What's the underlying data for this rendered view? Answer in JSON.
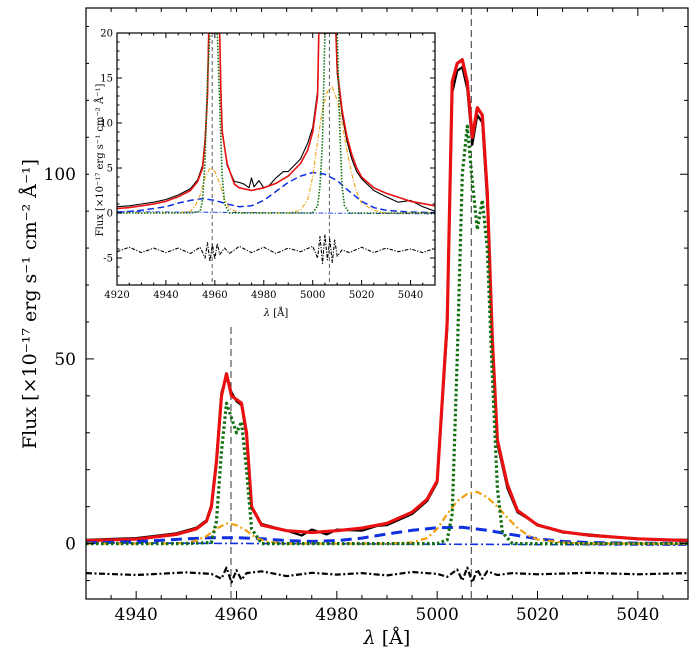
{
  "chart_data": [
    {
      "type": "line",
      "panel": "main",
      "xlabel_symbol": "λ",
      "xlabel_unit": "[Å]",
      "ylabel_text": "Flux [",
      "ylabel_units": "×10⁻¹⁷ erg s⁻¹ cm⁻² Å⁻¹]",
      "xlim": [
        4930,
        5050
      ],
      "ylim": [
        -15,
        145
      ],
      "xticks": [
        4940,
        4960,
        4980,
        5000,
        5020,
        5040
      ],
      "yticks": [
        0,
        50,
        100
      ],
      "vlines": [
        4958.9,
        5006.8
      ],
      "series": [
        {
          "style": "total-model",
          "color": "#e81010",
          "x": [
            4930,
            4940,
            4948,
            4952,
            4954,
            4955,
            4956,
            4957,
            4958,
            4959,
            4960,
            4961,
            4962,
            4963,
            4965,
            4970,
            4975,
            4980,
            4985,
            4990,
            4995,
            4998,
            5000,
            5002,
            5003,
            5004,
            5005,
            5006,
            5007,
            5008,
            5009,
            5010,
            5011,
            5012,
            5014,
            5016,
            5020,
            5025,
            5030,
            5040,
            5050
          ],
          "y": [
            0.8,
            1.2,
            2.5,
            4,
            6,
            10,
            22,
            40,
            46,
            40,
            39,
            38,
            30,
            10,
            5,
            3.5,
            3,
            3.5,
            4.2,
            5.5,
            8.5,
            12,
            17,
            60,
            125,
            130,
            131,
            125,
            110,
            118,
            116,
            95,
            55,
            28,
            16,
            9,
            5,
            3.2,
            2.3,
            1.3,
            0.8
          ]
        },
        {
          "style": "data",
          "color": "#000000",
          "x": [
            4930,
            4940,
            4948,
            4952,
            4954,
            4955,
            4956,
            4957,
            4958,
            4959,
            4960,
            4961,
            4962,
            4963,
            4965,
            4970,
            4973,
            4975,
            4978,
            4980,
            4985,
            4988,
            4990,
            4995,
            4998,
            5000,
            5002,
            5003,
            5004,
            5005,
            5006,
            5007,
            5008,
            5009,
            5010,
            5011,
            5012,
            5014,
            5016,
            5020,
            5025,
            5030,
            5040,
            5050
          ],
          "y": [
            1,
            1.5,
            2.8,
            4.3,
            6.3,
            10.5,
            23,
            41,
            45,
            41,
            38.5,
            37.5,
            29,
            9.5,
            5.3,
            3.5,
            2.2,
            3.8,
            2.5,
            3.8,
            3.5,
            4.8,
            5,
            8,
            11.5,
            16.5,
            58,
            122,
            128,
            129,
            123,
            108,
            116,
            114,
            92,
            53,
            27,
            15,
            8.5,
            5.2,
            3,
            2.5,
            1.2,
            1
          ]
        },
        {
          "style": "dotted",
          "color": "#107010",
          "x": [
            4930,
            4950,
            4955,
            4956,
            4957,
            4958,
            4959,
            4960,
            4961,
            4962,
            4963,
            4965,
            4975,
            4990,
            5000,
            5002,
            5003,
            5004,
            5005,
            5006,
            5007,
            5008,
            5009,
            5010,
            5011,
            5012,
            5013,
            5015,
            5030,
            5050
          ],
          "y": [
            0,
            0,
            0.3,
            6,
            25,
            38,
            34,
            30,
            33,
            20,
            4,
            0,
            0,
            0,
            0,
            1,
            8,
            50,
            100,
            113,
            98,
            85,
            93,
            80,
            45,
            15,
            3,
            0,
            0,
            0
          ]
        },
        {
          "style": "dash-dot",
          "color": "#f0a010",
          "x": [
            4930,
            4945,
            4950,
            4952,
            4954,
            4956,
            4958,
            4960,
            4962,
            4964,
            4966,
            4970,
            4990,
            4995,
            4998,
            5000,
            5002,
            5004,
            5006,
            5008,
            5010,
            5012,
            5014,
            5016,
            5018,
            5020,
            5025,
            5030,
            5050
          ],
          "y": [
            0,
            0,
            0.2,
            0.8,
            2,
            4,
            5.5,
            5,
            3.5,
            1.5,
            0.5,
            0,
            0,
            0.3,
            1.5,
            4,
            8,
            11.5,
            13.5,
            14,
            12.5,
            10,
            7,
            4.3,
            2.3,
            1.1,
            0.3,
            0,
            0
          ]
        },
        {
          "style": "dashed",
          "color": "#1030e0",
          "x": [
            4930,
            4940,
            4945,
            4950,
            4955,
            4960,
            4965,
            4970,
            4975,
            4980,
            4985,
            4990,
            4995,
            5000,
            5005,
            5010,
            5015,
            5020,
            5025,
            5030,
            5040,
            5050
          ],
          "y": [
            0.2,
            0.5,
            0.9,
            1.3,
            1.6,
            1.6,
            1.3,
            0.8,
            0.6,
            0.8,
            1.5,
            2.6,
            3.6,
            4.3,
            4.4,
            3.6,
            2.4,
            1.3,
            0.6,
            0.3,
            0.1,
            0.05
          ]
        },
        {
          "style": "dash-dot-thin",
          "color": "#1030e0",
          "x": [
            4930,
            5050
          ],
          "y": [
            0.2,
            -0.4
          ]
        },
        {
          "style": "residual",
          "color": "#000000",
          "x": [
            4930,
            4940,
            4950,
            4955,
            4957,
            4958,
            4959,
            4960,
            4961,
            4962,
            4965,
            4970,
            4975,
            4980,
            4985,
            4990,
            4995,
            5000,
            5002,
            5004,
            5005,
            5006,
            5007,
            5008,
            5009,
            5010,
            5012,
            5015,
            5020,
            5030,
            5040,
            5050
          ],
          "y": [
            -8,
            -8.5,
            -7.8,
            -8.2,
            -9.5,
            -6.5,
            -10.5,
            -7.2,
            -9.8,
            -8,
            -7.5,
            -8.8,
            -7.9,
            -8.4,
            -8,
            -8.6,
            -7.7,
            -8.2,
            -9,
            -7,
            -10,
            -6.5,
            -10.5,
            -7,
            -9.5,
            -7.5,
            -8.5,
            -8,
            -8.3,
            -7.9,
            -8.3,
            -8
          ]
        }
      ]
    },
    {
      "type": "line",
      "panel": "inset",
      "xlabel_symbol": "λ",
      "xlabel_unit": "[Å]",
      "ylabel_text": "Flux [×10⁻¹⁷ erg s⁻¹ cm⁻² Å⁻¹]",
      "xlim": [
        4920,
        5050
      ],
      "ylim": [
        -8,
        20
      ],
      "xticks": [
        4920,
        4940,
        4960,
        4980,
        5000,
        5020,
        5040
      ],
      "yticks": [
        -5,
        0,
        5,
        10,
        15,
        20
      ],
      "vlines": [
        4958.9,
        5006.8
      ],
      "series": [
        {
          "style": "total-model",
          "color": "#e81010",
          "x": [
            4920,
            4925,
            4930,
            4935,
            4940,
            4945,
            4950,
            4953,
            4955,
            4956,
            4957,
            4957.5,
            4962,
            4962.5,
            4963,
            4965,
            4968,
            4970,
            4975,
            4980,
            4985,
            4990,
            4995,
            4998,
            5000,
            5002,
            5002.5,
            5009.5,
            5010,
            5012,
            5014,
            5016,
            5018,
            5020,
            5025,
            5030,
            5040,
            5050
          ],
          "y": [
            0.5,
            0.6,
            0.8,
            1,
            1.3,
            1.8,
            2.5,
            3.5,
            5,
            8,
            13,
            20,
            20,
            13,
            9,
            5.5,
            3.2,
            2.8,
            2.5,
            2.8,
            3.3,
            4.1,
            5.5,
            7,
            9,
            13,
            20,
            20,
            16,
            11.5,
            8.5,
            6.5,
            5,
            4,
            2.8,
            2.2,
            1.3,
            0.8
          ]
        },
        {
          "style": "data",
          "color": "#000000",
          "x": [
            4920,
            4925,
            4930,
            4935,
            4940,
            4945,
            4950,
            4953,
            4955,
            4956,
            4957,
            4957.5,
            4962,
            4962.5,
            4963,
            4965,
            4968,
            4970,
            4972,
            4974,
            4975,
            4976,
            4978,
            4980,
            4982,
            4985,
            4988,
            4990,
            4995,
            4998,
            5000,
            5002,
            5002.5,
            5009.5,
            5010,
            5012,
            5014,
            5016,
            5018,
            5020,
            5025,
            5030,
            5035,
            5040,
            5045,
            5050
          ],
          "y": [
            0.7,
            0.8,
            1,
            1.2,
            1.5,
            2,
            2.7,
            3.7,
            5.3,
            8.3,
            13.5,
            20,
            20,
            13.5,
            9.2,
            5.3,
            3.5,
            3.4,
            3.2,
            2.8,
            3.9,
            2.9,
            3.6,
            2.8,
            3,
            3.9,
            4.6,
            4.6,
            6,
            7.8,
            9.5,
            13.5,
            20,
            20,
            15.5,
            11,
            8,
            6,
            4.6,
            3.8,
            2.5,
            1.8,
            1.2,
            1.4,
            0.7,
            0.2
          ]
        },
        {
          "style": "dotted",
          "color": "#107010",
          "x": [
            4920,
            4950,
            4954,
            4955,
            4956,
            4957,
            4958,
            4961,
            4962,
            4963,
            4964,
            4966,
            4990,
            5000,
            5002,
            5003,
            5004,
            5005,
            5010,
            5011,
            5012,
            5013,
            5015,
            5050
          ],
          "y": [
            0,
            0,
            0.2,
            1.5,
            6,
            15,
            20,
            20,
            12,
            4,
            1,
            0,
            0,
            0,
            0.8,
            3,
            8,
            20,
            20,
            10,
            3,
            0.8,
            0,
            0
          ]
        },
        {
          "style": "dash-dot",
          "color": "#f0a010",
          "x": [
            4920,
            4945,
            4950,
            4952,
            4954,
            4956,
            4958,
            4960,
            4962,
            4964,
            4966,
            4970,
            4990,
            4995,
            4998,
            5000,
            5002,
            5004,
            5006,
            5008,
            5010,
            5012,
            5014,
            5016,
            5018,
            5020,
            5025,
            5030,
            5050
          ],
          "y": [
            0,
            0,
            0.2,
            0.8,
            2,
            4,
            5,
            4.6,
            3.3,
            1.5,
            0.5,
            0,
            0,
            0.3,
            1.5,
            4,
            8,
            11.5,
            13.5,
            14,
            12.5,
            10,
            7,
            4.3,
            2.3,
            1.1,
            0.3,
            0,
            0
          ]
        },
        {
          "style": "dashed",
          "color": "#1030e0",
          "x": [
            4920,
            4930,
            4940,
            4945,
            4950,
            4955,
            4960,
            4965,
            4970,
            4975,
            4980,
            4985,
            4990,
            4995,
            5000,
            5005,
            5010,
            5015,
            5020,
            5025,
            5030,
            5040,
            5050
          ],
          "y": [
            0.05,
            0.3,
            0.7,
            1.1,
            1.4,
            1.6,
            1.4,
            1,
            0.7,
            0.8,
            1.4,
            2.4,
            3.4,
            4.1,
            4.5,
            4.3,
            3.6,
            2.4,
            1.3,
            0.6,
            0.3,
            0.1,
            0.05
          ]
        },
        {
          "style": "dash-dot-thin",
          "color": "#1030e0",
          "x": [
            4920,
            5050
          ],
          "y": [
            0.15,
            -0.1
          ]
        },
        {
          "style": "residual",
          "color": "#000000",
          "x": [
            4920,
            4925,
            4930,
            4935,
            4940,
            4945,
            4950,
            4954,
            4956,
            4957,
            4958,
            4959,
            4960,
            4961,
            4962,
            4964,
            4966,
            4970,
            4975,
            4980,
            4985,
            4990,
            4995,
            5000,
            5002,
            5003,
            5004,
            5005,
            5006,
            5007,
            5008,
            5009,
            5010,
            5012,
            5015,
            5020,
            5025,
            5030,
            5035,
            5040,
            5045,
            5050
          ],
          "y": [
            -4.3,
            -3.8,
            -4.4,
            -3.9,
            -4.4,
            -3.9,
            -4.5,
            -3.8,
            -5,
            -3.3,
            -5.4,
            -3.5,
            -5.1,
            -3.4,
            -4.6,
            -3.9,
            -4.5,
            -3.7,
            -4.4,
            -3.8,
            -4.5,
            -3.9,
            -4.3,
            -3.7,
            -5,
            -2.6,
            -5.6,
            -2.4,
            -5.2,
            -2.9,
            -5.5,
            -3,
            -4.8,
            -4.1,
            -4.4,
            -3.8,
            -4.4,
            -3.9,
            -4.3,
            -4,
            -4.4,
            -3.9
          ]
        }
      ]
    }
  ]
}
